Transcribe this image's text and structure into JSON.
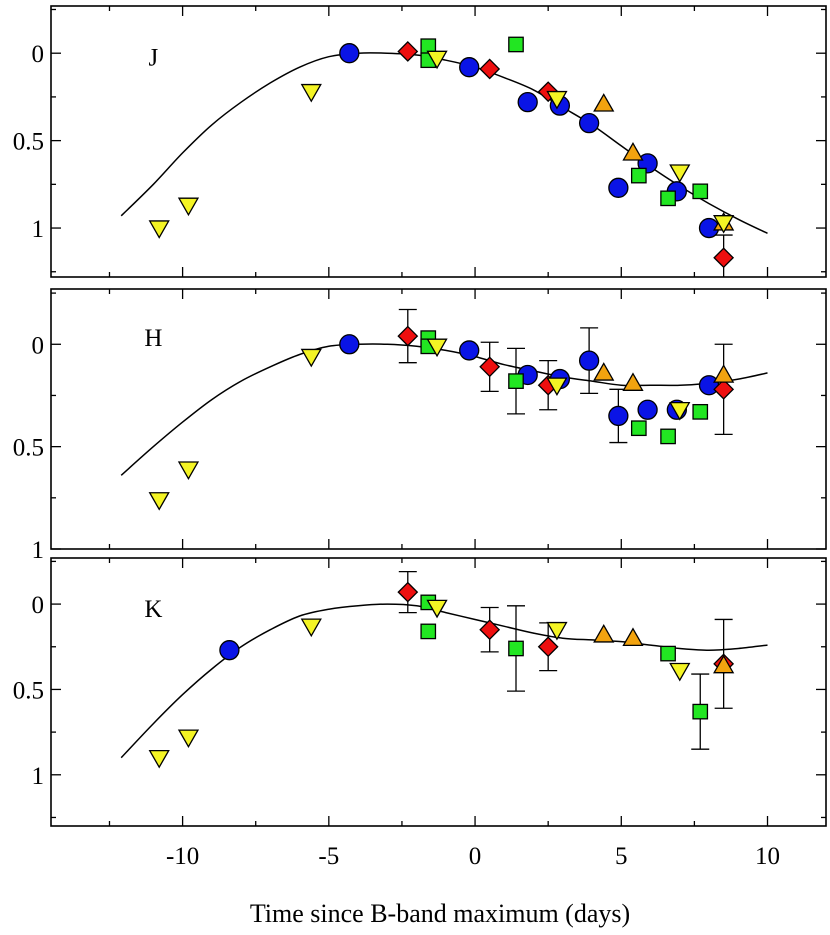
{
  "chart_data": {
    "type": "scatter",
    "xlabel": "Time since B-band maximum (days)",
    "xlim": [
      -14.5,
      12
    ],
    "x_ticks": [
      -10,
      -5,
      0,
      5,
      10
    ],
    "x_tick_labels": [
      "-10",
      "-5",
      "0",
      "5",
      "10"
    ],
    "x_minor_step": 2.5,
    "y_minor_step": 0.25,
    "y_inverted": true,
    "marker_styles": {
      "circle": {
        "fill": "#0a14e6"
      },
      "diamond": {
        "fill": "#ee0f0f"
      },
      "square": {
        "fill": "#22e622"
      },
      "triangle": {
        "fill": "#f2a30f"
      },
      "invtri": {
        "fill": "#f4f424"
      }
    },
    "panels": [
      {
        "label": "J",
        "ylim": [
          -0.27,
          1.28
        ],
        "y_ticks": [
          0,
          0.5,
          1
        ],
        "y_tick_labels": [
          "0",
          "0.5",
          "1"
        ],
        "fit_curve": {
          "x": [
            -12.1,
            -11,
            -10,
            -9,
            -8,
            -7,
            -6,
            -5,
            -4,
            -3,
            -2,
            -1,
            0,
            1,
            2,
            3,
            4,
            5,
            6,
            7,
            8,
            9,
            10
          ],
          "y": [
            0.93,
            0.75,
            0.57,
            0.41,
            0.28,
            0.17,
            0.08,
            0.02,
            0.0,
            0.0,
            0.01,
            0.04,
            0.08,
            0.14,
            0.21,
            0.31,
            0.41,
            0.53,
            0.65,
            0.76,
            0.86,
            0.95,
            1.03
          ]
        },
        "series": [
          {
            "marker": "circle",
            "points": [
              {
                "x": -4.3,
                "y": 0.0
              },
              {
                "x": -0.2,
                "y": 0.08
              },
              {
                "x": 1.8,
                "y": 0.28
              },
              {
                "x": 2.9,
                "y": 0.3
              },
              {
                "x": 3.9,
                "y": 0.4
              },
              {
                "x": 4.9,
                "y": 0.77
              },
              {
                "x": 5.9,
                "y": 0.63
              },
              {
                "x": 6.9,
                "y": 0.79
              },
              {
                "x": 8.0,
                "y": 1.0
              }
            ]
          },
          {
            "marker": "diamond",
            "points": [
              {
                "x": -2.3,
                "y": -0.01
              },
              {
                "x": 0.5,
                "y": 0.09
              },
              {
                "x": 2.5,
                "y": 0.22
              },
              {
                "x": 8.5,
                "y": 1.17,
                "err": 0.13
              }
            ]
          },
          {
            "marker": "square",
            "points": [
              {
                "x": -1.6,
                "y": -0.04
              },
              {
                "x": -1.6,
                "y": 0.04
              },
              {
                "x": 1.4,
                "y": -0.05
              },
              {
                "x": 5.6,
                "y": 0.7
              },
              {
                "x": 6.6,
                "y": 0.83
              },
              {
                "x": 7.7,
                "y": 0.79
              }
            ]
          },
          {
            "marker": "triangle",
            "points": [
              {
                "x": 4.4,
                "y": 0.29
              },
              {
                "x": 5.4,
                "y": 0.57
              },
              {
                "x": 8.5,
                "y": 0.97
              }
            ]
          },
          {
            "marker": "invtri",
            "points": [
              {
                "x": -10.8,
                "y": 1.0
              },
              {
                "x": -9.8,
                "y": 0.87
              },
              {
                "x": -5.6,
                "y": 0.22
              },
              {
                "x": -1.3,
                "y": 0.03
              },
              {
                "x": 2.8,
                "y": 0.26
              },
              {
                "x": 7.0,
                "y": 0.68
              },
              {
                "x": 8.5,
                "y": 0.97
              }
            ]
          }
        ]
      },
      {
        "label": "H",
        "ylim": [
          -0.27,
          1.0
        ],
        "y_ticks": [
          0,
          0.5,
          1
        ],
        "y_tick_labels": [
          "0",
          "0.5",
          "1"
        ],
        "fit_curve": {
          "x": [
            -12.1,
            -11,
            -10,
            -9,
            -8,
            -7,
            -6,
            -5,
            -4,
            -3,
            -2,
            -1,
            0,
            1,
            2,
            3,
            4,
            5,
            6,
            7,
            8,
            9,
            10
          ],
          "y": [
            0.64,
            0.5,
            0.38,
            0.27,
            0.18,
            0.11,
            0.05,
            0.01,
            0.0,
            0.0,
            0.01,
            0.03,
            0.06,
            0.1,
            0.13,
            0.16,
            0.18,
            0.2,
            0.2,
            0.2,
            0.19,
            0.17,
            0.14
          ]
        },
        "series": [
          {
            "marker": "circle",
            "points": [
              {
                "x": -4.3,
                "y": 0.0
              },
              {
                "x": -0.2,
                "y": 0.03
              },
              {
                "x": 1.8,
                "y": 0.15
              },
              {
                "x": 2.9,
                "y": 0.17
              },
              {
                "x": 3.9,
                "y": 0.08,
                "err": 0.16
              },
              {
                "x": 4.9,
                "y": 0.35,
                "err": 0.13
              },
              {
                "x": 5.9,
                "y": 0.32
              },
              {
                "x": 6.9,
                "y": 0.32
              },
              {
                "x": 8.0,
                "y": 0.2
              }
            ]
          },
          {
            "marker": "diamond",
            "points": [
              {
                "x": -2.3,
                "y": -0.04,
                "err": 0.13
              },
              {
                "x": 0.5,
                "y": 0.11,
                "err": 0.12
              },
              {
                "x": 2.5,
                "y": 0.2,
                "err": 0.12
              },
              {
                "x": 8.5,
                "y": 0.22,
                "err": 0.22
              }
            ]
          },
          {
            "marker": "square",
            "points": [
              {
                "x": -1.6,
                "y": -0.03
              },
              {
                "x": -1.6,
                "y": 0.01
              },
              {
                "x": 1.4,
                "y": 0.18,
                "err": 0.16
              },
              {
                "x": 5.6,
                "y": 0.41
              },
              {
                "x": 6.6,
                "y": 0.45
              },
              {
                "x": 7.7,
                "y": 0.33
              }
            ]
          },
          {
            "marker": "triangle",
            "points": [
              {
                "x": 4.4,
                "y": 0.14
              },
              {
                "x": 5.4,
                "y": 0.19
              },
              {
                "x": 8.5,
                "y": 0.15
              }
            ]
          },
          {
            "marker": "invtri",
            "points": [
              {
                "x": -10.8,
                "y": 0.76
              },
              {
                "x": -9.8,
                "y": 0.61
              },
              {
                "x": -5.6,
                "y": 0.06
              },
              {
                "x": -1.3,
                "y": 0.01
              },
              {
                "x": 2.8,
                "y": 0.2
              },
              {
                "x": 7.0,
                "y": 0.32
              }
            ]
          }
        ]
      },
      {
        "label": "K",
        "ylim": [
          -0.27,
          1.3
        ],
        "y_ticks": [
          0,
          0.5,
          1
        ],
        "y_tick_labels": [
          "0",
          "0.5",
          "1"
        ],
        "fit_curve": {
          "x": [
            -12.1,
            -11,
            -10,
            -9,
            -8,
            -7,
            -6,
            -5,
            -4,
            -3,
            -2,
            -1,
            0,
            1,
            2,
            3,
            4,
            5,
            6,
            7,
            8,
            9,
            10
          ],
          "y": [
            0.9,
            0.7,
            0.53,
            0.38,
            0.25,
            0.15,
            0.07,
            0.03,
            0.01,
            0.0,
            0.01,
            0.05,
            0.09,
            0.13,
            0.17,
            0.2,
            0.21,
            0.22,
            0.24,
            0.26,
            0.27,
            0.26,
            0.24
          ]
        },
        "series": [
          {
            "marker": "circle",
            "points": [
              {
                "x": -8.4,
                "y": 0.27
              }
            ]
          },
          {
            "marker": "diamond",
            "points": [
              {
                "x": -2.3,
                "y": -0.07,
                "err": 0.12
              },
              {
                "x": 0.5,
                "y": 0.15,
                "err": 0.13
              },
              {
                "x": 2.5,
                "y": 0.25,
                "err": 0.14
              },
              {
                "x": 8.5,
                "y": 0.35,
                "err": 0.26
              }
            ]
          },
          {
            "marker": "square",
            "points": [
              {
                "x": -1.6,
                "y": -0.01
              },
              {
                "x": -1.6,
                "y": 0.16
              },
              {
                "x": 1.4,
                "y": 0.26,
                "err": 0.25
              },
              {
                "x": 6.6,
                "y": 0.29
              },
              {
                "x": 7.7,
                "y": 0.63,
                "err": 0.22
              }
            ]
          },
          {
            "marker": "triangle",
            "points": [
              {
                "x": 4.4,
                "y": 0.18
              },
              {
                "x": 5.4,
                "y": 0.2
              },
              {
                "x": 8.5,
                "y": 0.36
              }
            ]
          },
          {
            "marker": "invtri",
            "points": [
              {
                "x": -10.8,
                "y": 0.9
              },
              {
                "x": -9.8,
                "y": 0.78
              },
              {
                "x": -5.6,
                "y": 0.13
              },
              {
                "x": -1.3,
                "y": 0.02
              },
              {
                "x": 2.8,
                "y": 0.15
              },
              {
                "x": 7.0,
                "y": 0.39
              }
            ]
          }
        ]
      }
    ]
  }
}
